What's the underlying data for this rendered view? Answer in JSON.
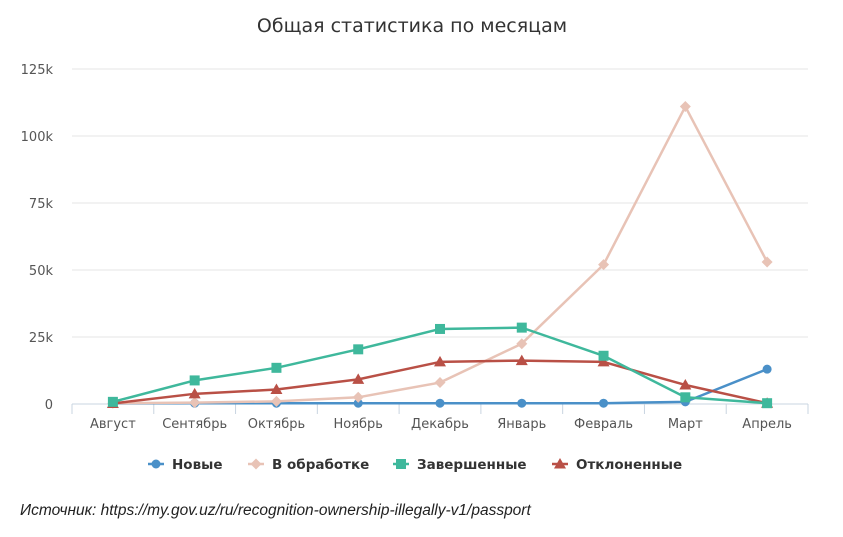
{
  "chart_data": {
    "type": "line",
    "title": "Общая статистика по месяцам",
    "categories": [
      "Август",
      "Сентябрь",
      "Октябрь",
      "Ноябрь",
      "Декабрь",
      "Январь",
      "Февраль",
      "Март",
      "Апрель"
    ],
    "y_ticks": [
      "0",
      "25k",
      "50k",
      "75k",
      "100k",
      "125k"
    ],
    "ylim": [
      0,
      125000
    ],
    "grid": "horizontal",
    "legend_position": "bottom",
    "series": [
      {
        "name": "Новые",
        "color": "#4a90c8",
        "marker": "circle",
        "values": [
          200,
          300,
          300,
          300,
          300,
          300,
          300,
          800,
          13000
        ]
      },
      {
        "name": "В обработке",
        "color": "#e8c3b6",
        "marker": "diamond",
        "values": [
          300,
          500,
          1000,
          2500,
          8000,
          22500,
          52000,
          111000,
          53000
        ]
      },
      {
        "name": "Завершенные",
        "color": "#3fb89c",
        "marker": "square",
        "values": [
          800,
          8800,
          13500,
          20400,
          28000,
          28500,
          18000,
          2500,
          300
        ]
      },
      {
        "name": "Отклоненные",
        "color": "#b95046",
        "marker": "triangle",
        "values": [
          200,
          3800,
          5400,
          9200,
          15700,
          16200,
          15700,
          7100,
          300
        ]
      }
    ]
  },
  "source_text": "Источник: https://my.gov.uz/ru/recognition-ownership-illegally-v1/passport"
}
